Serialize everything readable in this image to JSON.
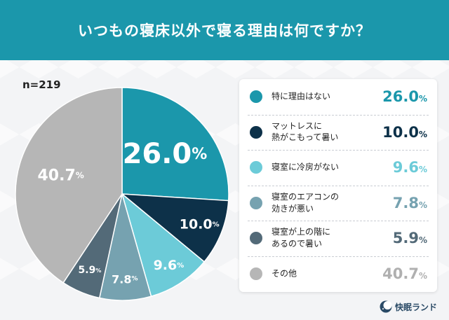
{
  "title": "いつもの寝床以外で寝る理由は何ですか？",
  "sample_size": "n=219",
  "brand": "快眠ランド",
  "chart_data": {
    "type": "pie",
    "unit": "%",
    "slices": [
      {
        "label": "特に理由はない",
        "value": 26.0,
        "display": "26.0",
        "color": "#1b97ab",
        "label_color": "#ffffff"
      },
      {
        "label": "マットレスに\n熱がこもって暑い",
        "value": 10.0,
        "display": "10.0",
        "color": "#0d3149",
        "label_color": "#ffffff"
      },
      {
        "label": "寝室に冷房がない",
        "value": 9.6,
        "display": "9.6",
        "color": "#6ccbd8",
        "label_color": "#ffffff"
      },
      {
        "label": "寝室のエアコンの\n効きが悪い",
        "value": 7.8,
        "display": "7.8",
        "color": "#76a2b0",
        "label_color": "#ffffff"
      },
      {
        "label": "寝室が上の階に\nあるので暑い",
        "value": 5.9,
        "display": "5.9",
        "color": "#536a78",
        "label_color": "#ffffff"
      },
      {
        "label": "その他",
        "value": 40.7,
        "display": "40.7",
        "color": "#b6b6b6",
        "label_color": "#ffffff"
      }
    ]
  }
}
